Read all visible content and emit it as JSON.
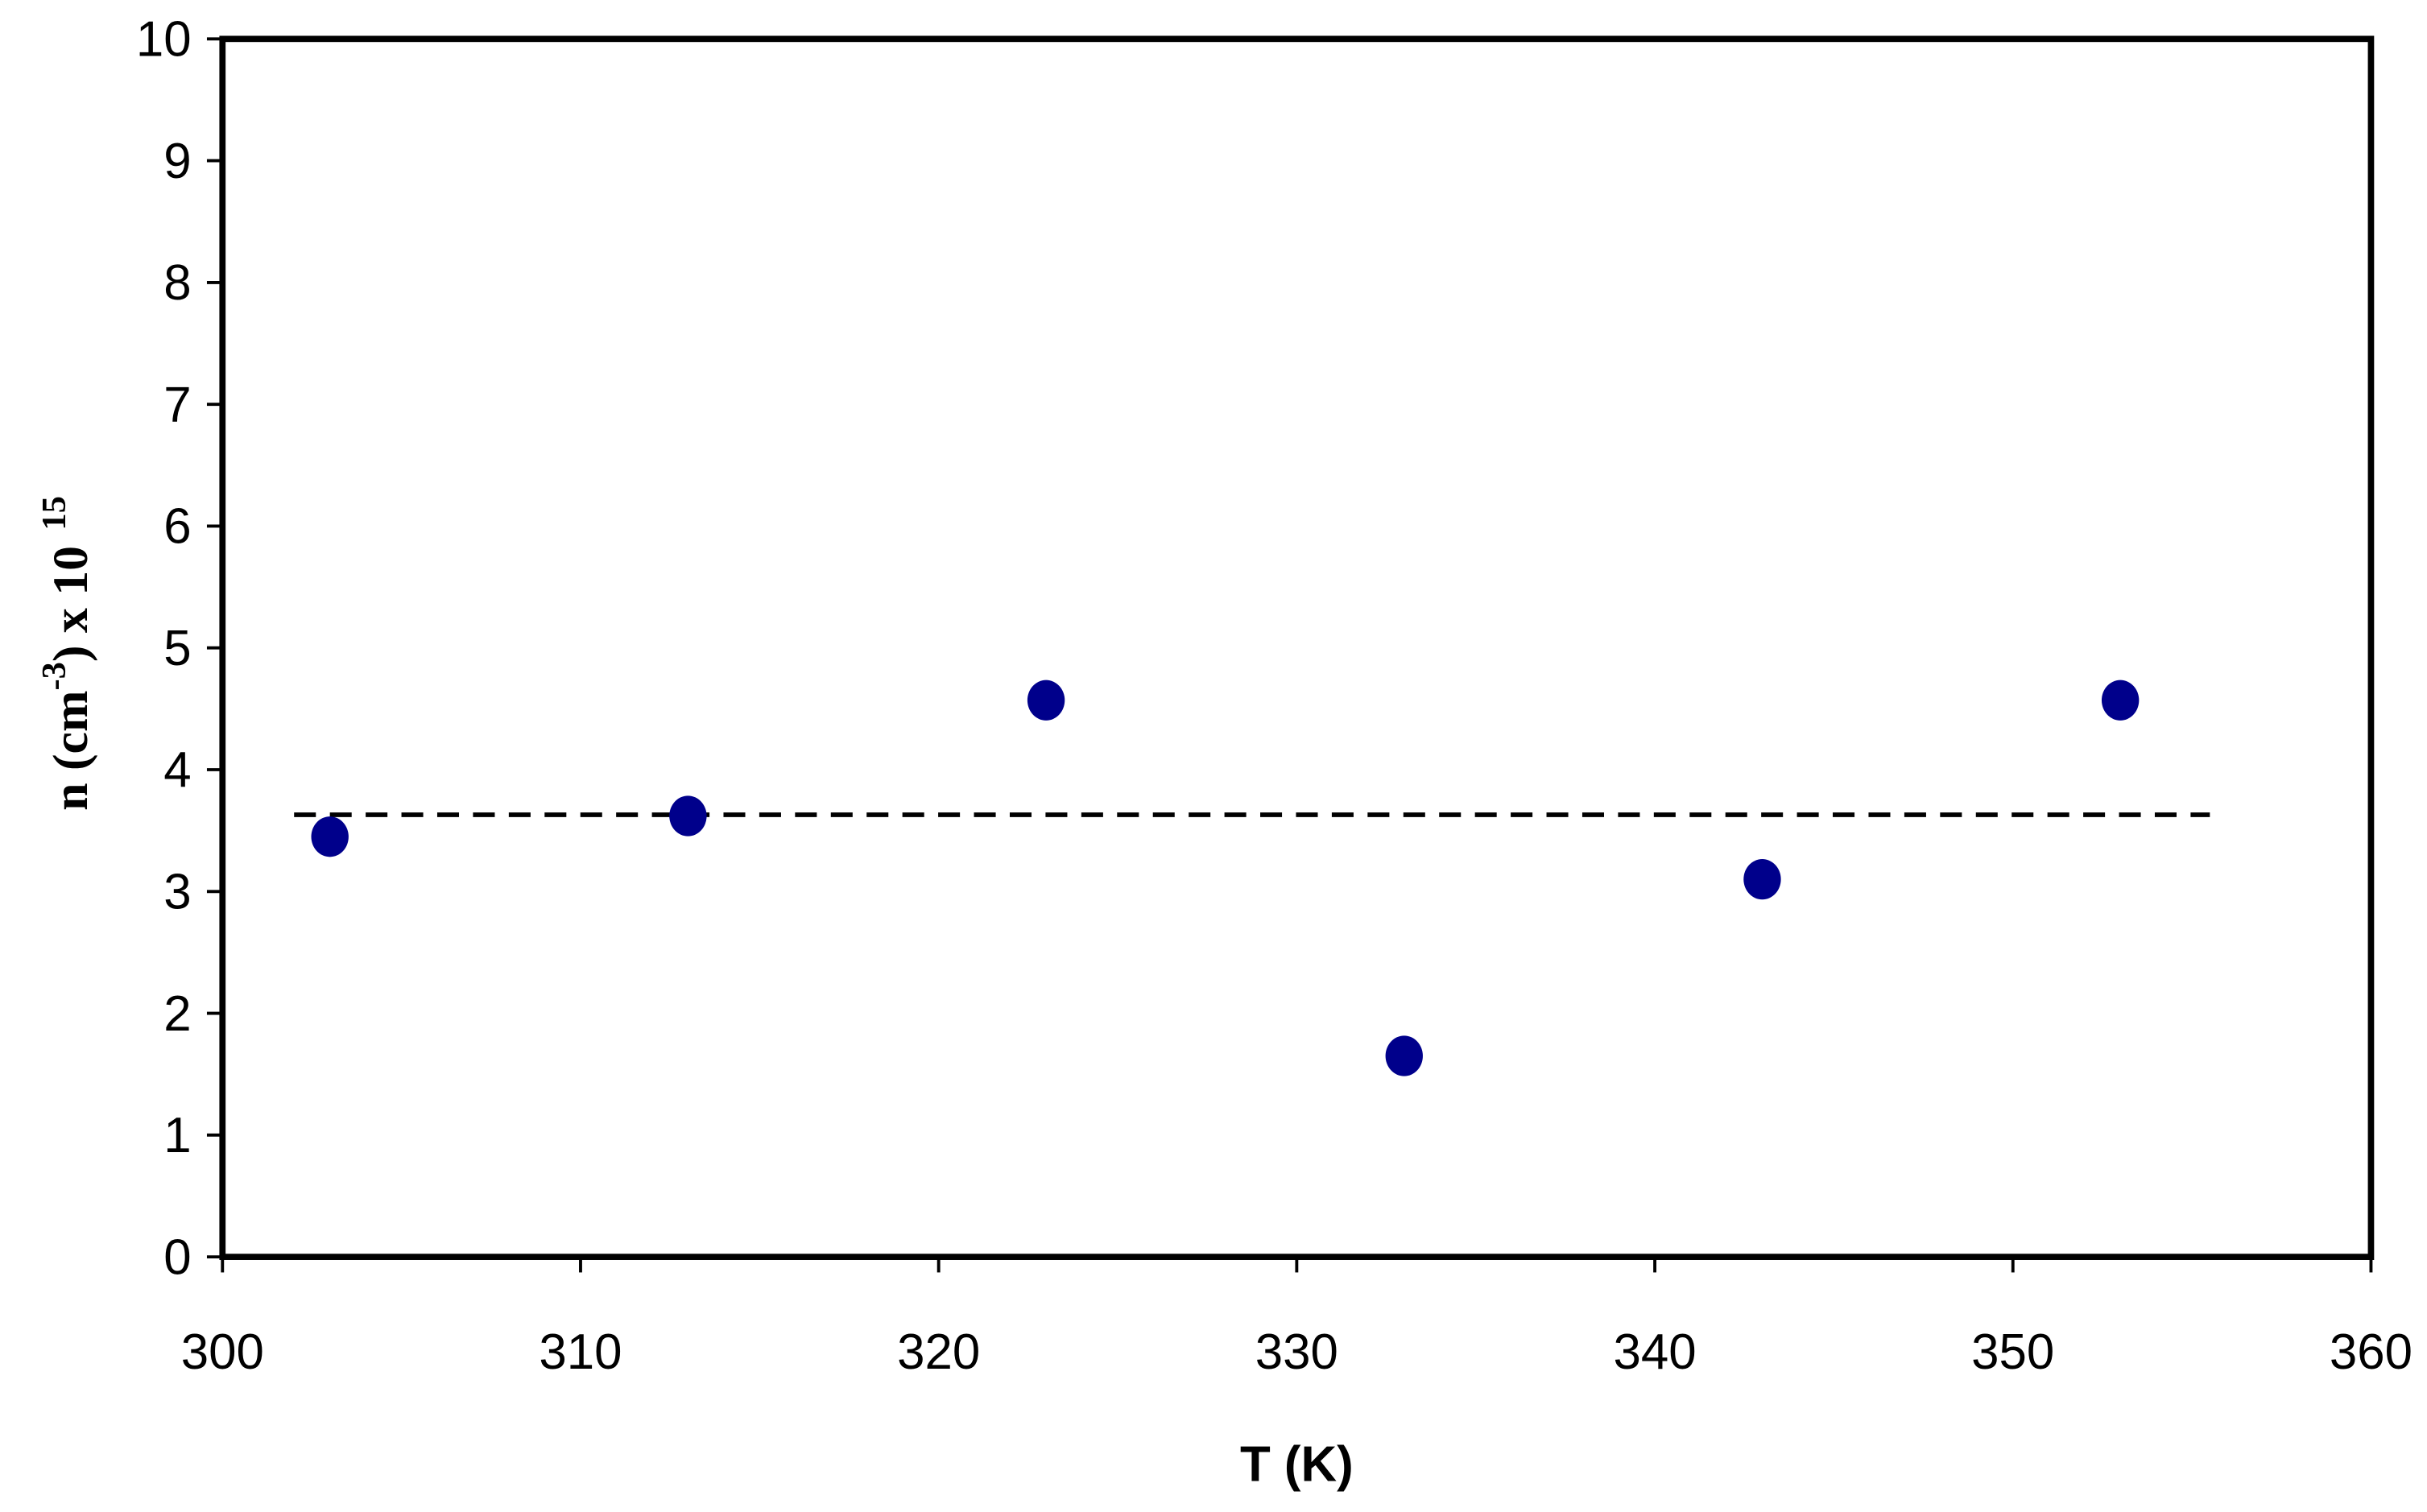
{
  "chart_data": {
    "type": "scatter",
    "xlabel": "T (K)",
    "ylabel": [
      "n (cm",
      "-3",
      ") x 10",
      "15"
    ],
    "xlim": [
      300,
      360
    ],
    "xticks": [
      300,
      310,
      320,
      330,
      340,
      350,
      360
    ],
    "ylim": [
      0,
      10
    ],
    "yticks": [
      0,
      1,
      2,
      3,
      4,
      5,
      6,
      7,
      8,
      9,
      10
    ],
    "grid": false,
    "series": [
      {
        "mode": "markers",
        "color": "#00008b",
        "x": [
          303,
          313,
          323,
          333,
          343,
          353
        ],
        "values": [
          3.45,
          3.62,
          4.57,
          1.65,
          3.1,
          4.57
        ]
      },
      {
        "mode": "dashed-line",
        "color": "#000000",
        "x": [
          302,
          355.5
        ],
        "values": [
          3.63,
          3.63
        ]
      }
    ]
  }
}
